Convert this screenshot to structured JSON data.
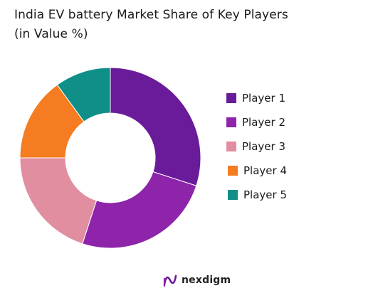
{
  "chart_data": {
    "type": "pie",
    "title": "India EV battery Market Share of Key Players",
    "subtitle": "(in Value %)",
    "donut": true,
    "legend_position": "right",
    "categories": [
      "Player 1",
      "Player 2",
      "Player 3",
      "Player 4",
      "Player 5"
    ],
    "values": [
      30,
      25,
      20,
      15,
      10
    ],
    "colors": [
      "#6a1b9a",
      "#8e24aa",
      "#e08ea0",
      "#f57c20",
      "#0f8f87"
    ]
  },
  "brand": {
    "name": "nexdigm",
    "logo_icon": "nexdigm-logo-icon"
  }
}
